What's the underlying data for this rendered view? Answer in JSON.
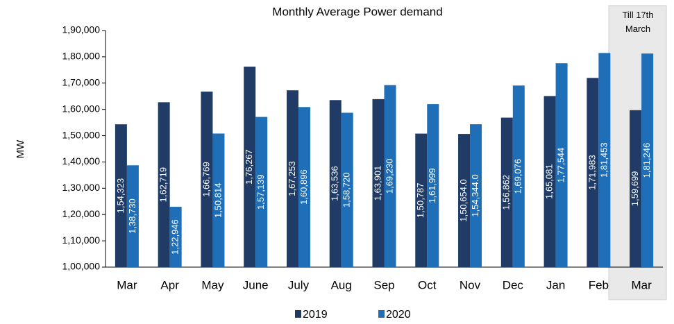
{
  "chart_data": {
    "type": "bar",
    "title": "Monthly Average Power demand",
    "y_label": "MW",
    "annotation": "Till 17th March",
    "categories": [
      "Mar",
      "Apr",
      "May",
      "June",
      "July",
      "Aug",
      "Sep",
      "Oct",
      "Nov",
      "Dec",
      "Jan",
      "Feb",
      "Mar"
    ],
    "series": [
      {
        "name": "2019",
        "color": "#1f3b66",
        "values": [
          154323,
          162719,
          166769,
          176267,
          167253,
          163536,
          163901,
          150787,
          150654,
          156862,
          165081,
          171983,
          159699
        ],
        "value_labels": [
          "1,54,323",
          "1,62,719",
          "1,66,769",
          "1,76,267",
          "1,67,253",
          "1,63,536",
          "1,63,901",
          "1,50,787",
          "1,50,654.0",
          "1,56,862",
          "1,65,081",
          "1,71,983",
          "1,59,699"
        ]
      },
      {
        "name": "2020",
        "color": "#1f6fb8",
        "values": [
          138730,
          122946,
          150814,
          157139,
          160896,
          158720,
          169230,
          161999,
          154344,
          169076,
          177544,
          181453,
          181246
        ],
        "value_labels": [
          "1,38,730",
          "1,22,946",
          "1,50,814",
          "1,57,139",
          "1,60,896",
          "1,58,720",
          "1,69,230",
          "1,61,999",
          "1,54,344.0",
          "1,69,076",
          "1,77,544",
          "1,81,453",
          "1,81,246"
        ]
      }
    ],
    "ylim": [
      100000,
      190000
    ],
    "yticks": [
      {
        "value": 100000,
        "label": "1,00,000"
      },
      {
        "value": 110000,
        "label": "1,10,000"
      },
      {
        "value": 120000,
        "label": "1,20,000"
      },
      {
        "value": 130000,
        "label": "1,30,000"
      },
      {
        "value": 140000,
        "label": "1,40,000"
      },
      {
        "value": 150000,
        "label": "1,50,000"
      },
      {
        "value": 160000,
        "label": "1,60,000"
      },
      {
        "value": 170000,
        "label": "1,70,000"
      },
      {
        "value": 180000,
        "label": "1,80,000"
      },
      {
        "value": 190000,
        "label": "1,90,000"
      }
    ],
    "grid": false,
    "legend": "bottom"
  }
}
